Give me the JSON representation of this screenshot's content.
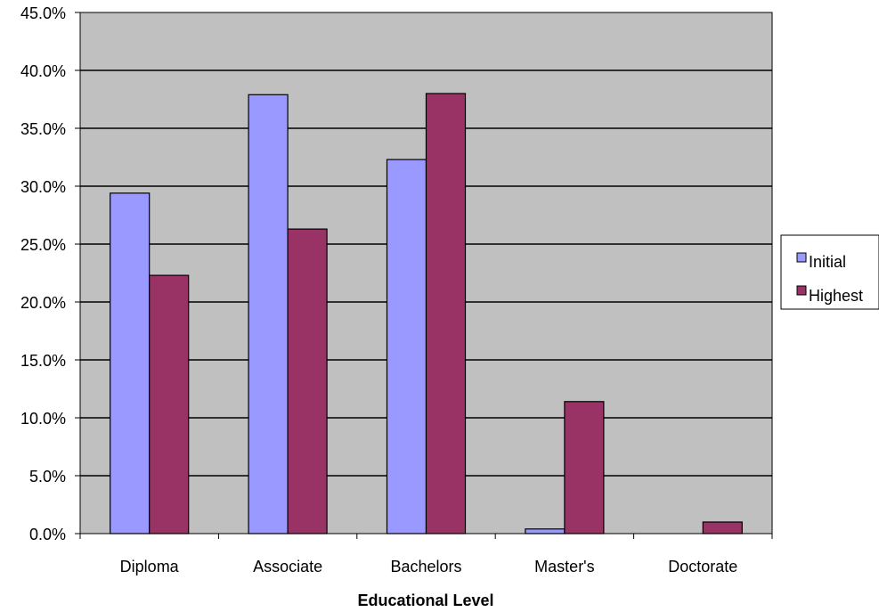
{
  "chart_data": {
    "type": "bar",
    "categories": [
      "Diploma",
      "Associate",
      "Bachelors",
      "Master's",
      "Doctorate"
    ],
    "series": [
      {
        "name": "Initial",
        "values": [
          29.4,
          37.9,
          32.3,
          0.4,
          0.0
        ],
        "color": "#9999ff"
      },
      {
        "name": "Highest",
        "values": [
          22.3,
          26.3,
          38.0,
          11.4,
          1.0
        ],
        "color": "#993366"
      }
    ],
    "title": "",
    "xlabel": "Educational Level",
    "ylabel": "",
    "ylim": [
      0,
      45
    ],
    "yticks": [
      "0.0%",
      "5.0%",
      "10.0%",
      "15.0%",
      "20.0%",
      "25.0%",
      "30.0%",
      "35.0%",
      "40.0%",
      "45.0%"
    ],
    "grid": true,
    "legend_position": "right",
    "plot_background": "#c0c0c0"
  }
}
